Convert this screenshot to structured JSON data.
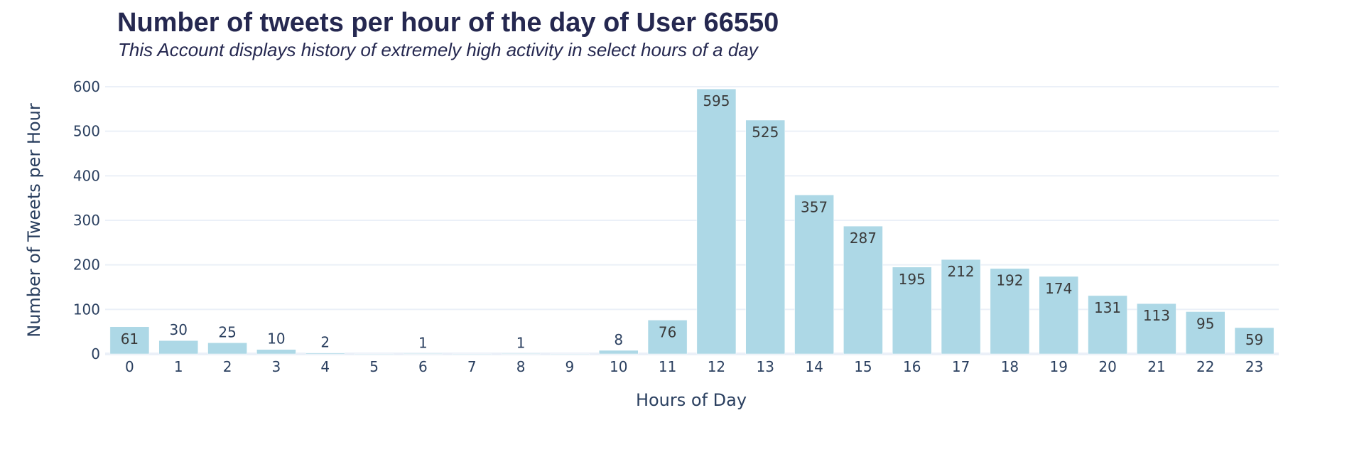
{
  "chart_data": {
    "type": "bar",
    "title": "Number of tweets per hour of the day of User 66550",
    "subtitle": "This Account displays history of extremely high activity in select hours of a day",
    "xlabel": "Hours of Day",
    "ylabel": "Number of Tweets per Hour",
    "categories": [
      "0",
      "1",
      "2",
      "3",
      "4",
      "5",
      "6",
      "7",
      "8",
      "9",
      "10",
      "11",
      "12",
      "13",
      "14",
      "15",
      "16",
      "17",
      "18",
      "19",
      "20",
      "21",
      "22",
      "23"
    ],
    "values": [
      61,
      30,
      25,
      10,
      2,
      0,
      1,
      0,
      1,
      0,
      8,
      76,
      595,
      525,
      357,
      287,
      195,
      212,
      192,
      174,
      131,
      113,
      95,
      59
    ],
    "data_labels": [
      "61",
      "30",
      "25",
      "10",
      "2",
      "",
      "1",
      "",
      "1",
      "",
      "8",
      "76",
      "595",
      "525",
      "357",
      "287",
      "195",
      "212",
      "192",
      "174",
      "131",
      "113",
      "95",
      "59"
    ],
    "ylim": [
      0,
      600
    ],
    "yticks": [
      0,
      100,
      200,
      300,
      400,
      500,
      600
    ],
    "ytick_labels": [
      "0",
      "100",
      "200",
      "300",
      "400",
      "500",
      "600"
    ],
    "grid": true,
    "legend": "none",
    "colors": {
      "bar": "#add8e6",
      "bar_outline": "#ffffff",
      "text": "#2a3f5f",
      "title": "#252850",
      "label_inside": "#3a3a3a",
      "gridline": "#ebf0f8"
    }
  }
}
